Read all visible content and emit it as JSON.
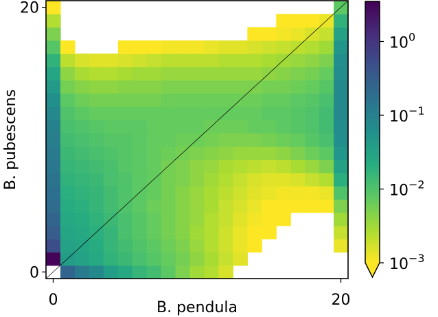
{
  "chart_data": {
    "type": "heatmap",
    "title": "",
    "xlabel": "B. pendula",
    "ylabel": "B. pubescens",
    "x_ticks": [
      "0",
      "20"
    ],
    "y_ticks": [
      "0",
      "20"
    ],
    "x_range": [
      0,
      20
    ],
    "y_range": [
      0,
      20
    ],
    "color_scale": "log",
    "colormap": "viridis_r",
    "color_range": [
      0.001,
      3.5
    ],
    "colorbar": {
      "ticks": [
        {
          "base": "10",
          "exp": "0",
          "value": 1
        },
        {
          "base": "10",
          "exp": "−1",
          "value": 0.1
        },
        {
          "base": "10",
          "exp": "−2",
          "value": 0.01
        },
        {
          "base": "10",
          "exp": "−3",
          "value": 0.001
        }
      ],
      "extend": "min"
    },
    "diagonal_reference_line": true,
    "grid": false,
    "cells_note": "log10 of value; null = empty",
    "values_log10": [
      [
        null,
        -0.6,
        -0.9,
        -1.1,
        -1.4,
        -1.6,
        -1.8,
        -1.9,
        -2.1,
        -2.3,
        -2.5,
        -2.6,
        -2.8,
        null,
        null,
        null,
        null,
        null,
        null,
        null,
        null
      ],
      [
        0.5,
        -1.4,
        -1.5,
        -1.6,
        -1.75,
        -1.85,
        -1.95,
        -2.05,
        -2.15,
        -2.25,
        -2.4,
        -2.55,
        -2.7,
        -2.85,
        null,
        null,
        null,
        null,
        null,
        null,
        null
      ],
      [
        -0.3,
        -1.5,
        -1.55,
        -1.65,
        -1.8,
        -1.9,
        -2.0,
        -2.1,
        -2.2,
        -2.3,
        -2.45,
        -2.6,
        -2.75,
        -2.9,
        -3.0,
        null,
        null,
        null,
        null,
        null,
        -2.9
      ],
      [
        -0.5,
        -1.55,
        -1.6,
        -1.7,
        -1.8,
        -1.95,
        -2.05,
        -2.15,
        -2.25,
        -2.35,
        -2.5,
        -2.6,
        -2.75,
        -2.9,
        -3.0,
        -3.1,
        null,
        null,
        null,
        null,
        -2.7
      ],
      [
        -0.6,
        -1.6,
        -1.65,
        -1.75,
        -1.85,
        -1.95,
        -2.05,
        -2.15,
        -2.25,
        -2.35,
        -2.45,
        -2.6,
        -2.7,
        -2.85,
        -2.95,
        -3.0,
        -3.05,
        null,
        null,
        null,
        -2.5
      ],
      [
        -0.7,
        -1.65,
        -1.7,
        -1.8,
        -1.9,
        -2.0,
        -2.1,
        -2.2,
        -2.25,
        -2.35,
        -2.45,
        -2.55,
        -2.7,
        -2.8,
        -2.9,
        -3.0,
        -3.05,
        -3.1,
        -3.1,
        -3.1,
        -2.3
      ],
      [
        -0.75,
        -1.7,
        -1.75,
        -1.8,
        -1.9,
        -2.0,
        -2.1,
        -2.15,
        -2.25,
        -2.35,
        -2.45,
        -2.55,
        -2.65,
        -2.75,
        -2.85,
        -2.9,
        -2.95,
        -2.95,
        -2.95,
        -2.9,
        -2.0
      ],
      [
        -0.8,
        -1.75,
        -1.8,
        -1.85,
        -1.95,
        -2.0,
        -2.1,
        -2.15,
        -2.25,
        -2.3,
        -2.4,
        -2.5,
        -2.6,
        -2.7,
        -2.8,
        -2.85,
        -2.85,
        -2.8,
        -2.7,
        -2.6,
        -1.7
      ],
      [
        -0.85,
        -1.8,
        -1.85,
        -1.9,
        -1.95,
        -2.05,
        -2.1,
        -2.15,
        -2.25,
        -2.3,
        -2.4,
        -2.45,
        -2.55,
        -2.6,
        -2.65,
        -2.7,
        -2.65,
        -2.55,
        -2.45,
        -2.3,
        -1.5
      ],
      [
        -0.9,
        -1.85,
        -1.9,
        -1.95,
        -2.0,
        -2.05,
        -2.1,
        -2.15,
        -2.2,
        -2.25,
        -2.3,
        -2.35,
        -2.4,
        -2.45,
        -2.45,
        -2.45,
        -2.4,
        -2.3,
        -2.2,
        -2.1,
        -1.3
      ],
      [
        -0.95,
        -1.9,
        -1.95,
        -2.0,
        -2.05,
        -2.05,
        -2.1,
        -2.15,
        -2.15,
        -2.2,
        -2.2,
        -2.25,
        -2.3,
        -2.3,
        -2.3,
        -2.25,
        -2.2,
        -2.15,
        -2.05,
        -1.95,
        -1.2
      ],
      [
        -1.0,
        -1.95,
        -2.0,
        -2.05,
        -2.1,
        -2.1,
        -2.1,
        -2.15,
        -2.15,
        -2.15,
        -2.15,
        -2.2,
        -2.2,
        -2.2,
        -2.15,
        -2.15,
        -2.1,
        -2.05,
        -2.0,
        -1.9,
        -1.15
      ],
      [
        -1.1,
        -2.0,
        -2.1,
        -2.15,
        -2.15,
        -2.15,
        -2.15,
        -2.15,
        -2.15,
        -2.15,
        -2.15,
        -2.15,
        -2.15,
        -2.15,
        -2.15,
        -2.1,
        -2.1,
        -2.05,
        -2.0,
        -1.9,
        -1.1
      ],
      [
        -1.2,
        -2.1,
        -2.2,
        -2.25,
        -2.25,
        -2.25,
        -2.25,
        -2.25,
        -2.2,
        -2.2,
        -2.2,
        -2.2,
        -2.2,
        -2.2,
        -2.2,
        -2.15,
        -2.15,
        -2.1,
        -2.05,
        -1.95,
        -1.1
      ],
      [
        -1.35,
        -2.25,
        -2.35,
        -2.4,
        -2.4,
        -2.35,
        -2.35,
        -2.35,
        -2.3,
        -2.3,
        -2.3,
        -2.3,
        -2.3,
        -2.3,
        -2.3,
        -2.25,
        -2.25,
        -2.2,
        -2.15,
        -2.05,
        -1.1
      ],
      [
        -1.55,
        -2.4,
        -2.55,
        -2.6,
        -2.6,
        -2.55,
        -2.5,
        -2.5,
        -2.45,
        -2.45,
        -2.45,
        -2.45,
        -2.45,
        -2.45,
        -2.45,
        -2.4,
        -2.35,
        -2.3,
        -2.25,
        -2.15,
        -1.15
      ],
      [
        -1.75,
        -2.65,
        -2.8,
        -2.85,
        -2.85,
        -2.8,
        -2.75,
        -2.7,
        -2.65,
        -2.65,
        -2.65,
        -2.65,
        -2.6,
        -2.6,
        -2.6,
        -2.55,
        -2.5,
        -2.45,
        -2.4,
        -2.3,
        -1.2
      ],
      [
        -2.05,
        -3.0,
        null,
        null,
        null,
        -3.1,
        -3.05,
        -3.0,
        -2.95,
        -2.95,
        -2.95,
        -2.9,
        -2.85,
        -2.85,
        -2.8,
        -2.75,
        -2.7,
        -2.65,
        -2.6,
        -2.5,
        -1.3
      ],
      [
        -2.3,
        null,
        null,
        null,
        null,
        null,
        null,
        null,
        null,
        null,
        null,
        null,
        null,
        null,
        -3.05,
        -3.0,
        -2.95,
        -2.9,
        -2.8,
        -2.7,
        -1.5
      ],
      [
        -2.6,
        null,
        null,
        null,
        null,
        null,
        null,
        null,
        null,
        null,
        null,
        null,
        null,
        null,
        null,
        null,
        -3.1,
        -3.05,
        -3.0,
        -2.9,
        -1.75
      ],
      [
        -3.0,
        null,
        null,
        null,
        null,
        null,
        null,
        null,
        null,
        null,
        null,
        null,
        null,
        null,
        null,
        null,
        null,
        null,
        null,
        null,
        -2.1
      ]
    ]
  }
}
